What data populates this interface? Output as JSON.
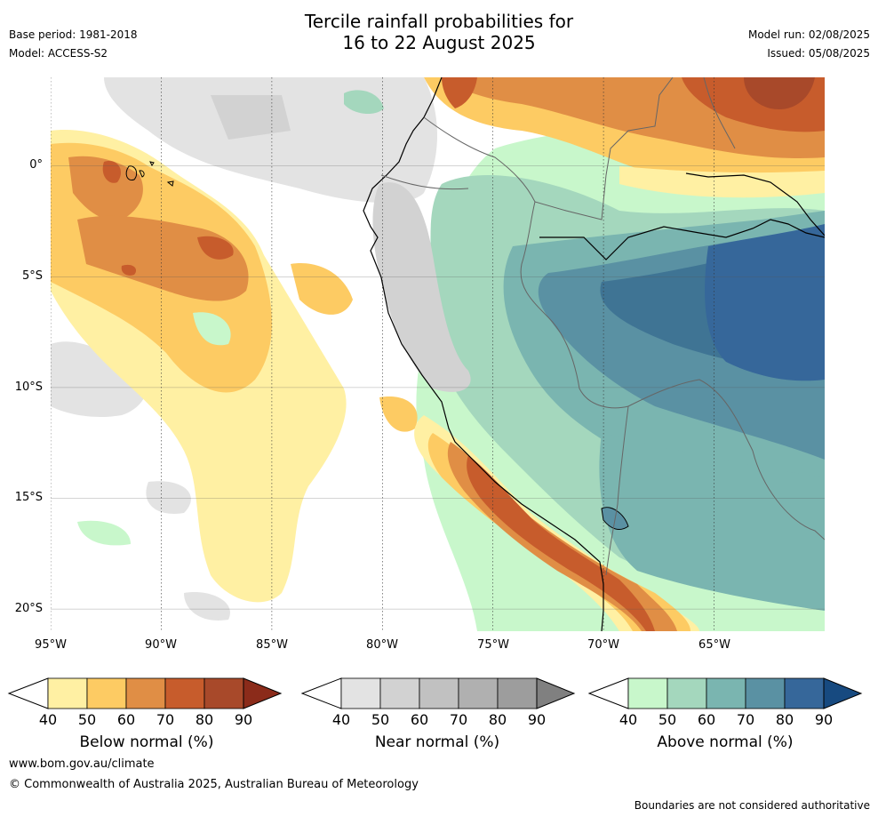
{
  "title_line1": "Tercile rainfall probabilities for",
  "title_line2": "16 to 22 August 2025",
  "base_period": "Base period: 1981-2018",
  "model": "Model: ACCESS-S2",
  "model_run": "Model run: 02/08/2025",
  "issued": "Issued: 05/08/2025",
  "map": {
    "lon_range": [
      -95,
      -60
    ],
    "lat_range": [
      -21,
      4
    ],
    "lat_ticks": [
      "0°",
      "5°S",
      "10°S",
      "15°S",
      "20°S"
    ],
    "lon_ticks": [
      "95°W",
      "90°W",
      "85°W",
      "80°W",
      "75°W",
      "70°W",
      "65°W"
    ]
  },
  "colorbars": [
    {
      "label": "Below normal (%)",
      "ticks": [
        "40",
        "50",
        "60",
        "70",
        "80",
        "90"
      ],
      "colors": [
        "#fff0a3",
        "#fdcb63",
        "#e08e45",
        "#c75c2c",
        "#a8492a",
        "#8b2b1a"
      ]
    },
    {
      "label": "Near normal (%)",
      "ticks": [
        "40",
        "50",
        "60",
        "70",
        "80",
        "90"
      ],
      "colors": [
        "#e3e3e3",
        "#d2d2d2",
        "#c1c1c1",
        "#b0b0b0",
        "#9d9d9d",
        "#808080"
      ]
    },
    {
      "label": "Above normal (%)",
      "ticks": [
        "40",
        "50",
        "60",
        "70",
        "80",
        "90"
      ],
      "colors": [
        "#c8f7cb",
        "#a4d7bd",
        "#7ab5b0",
        "#5a91a3",
        "#36679a",
        "#174a80"
      ]
    }
  ],
  "website": "www.bom.gov.au/climate",
  "copyright": "© Commonwealth of Australia 2025, Australian Bureau of Meteorology",
  "disclaimer": "Boundaries are not considered authoritative"
}
